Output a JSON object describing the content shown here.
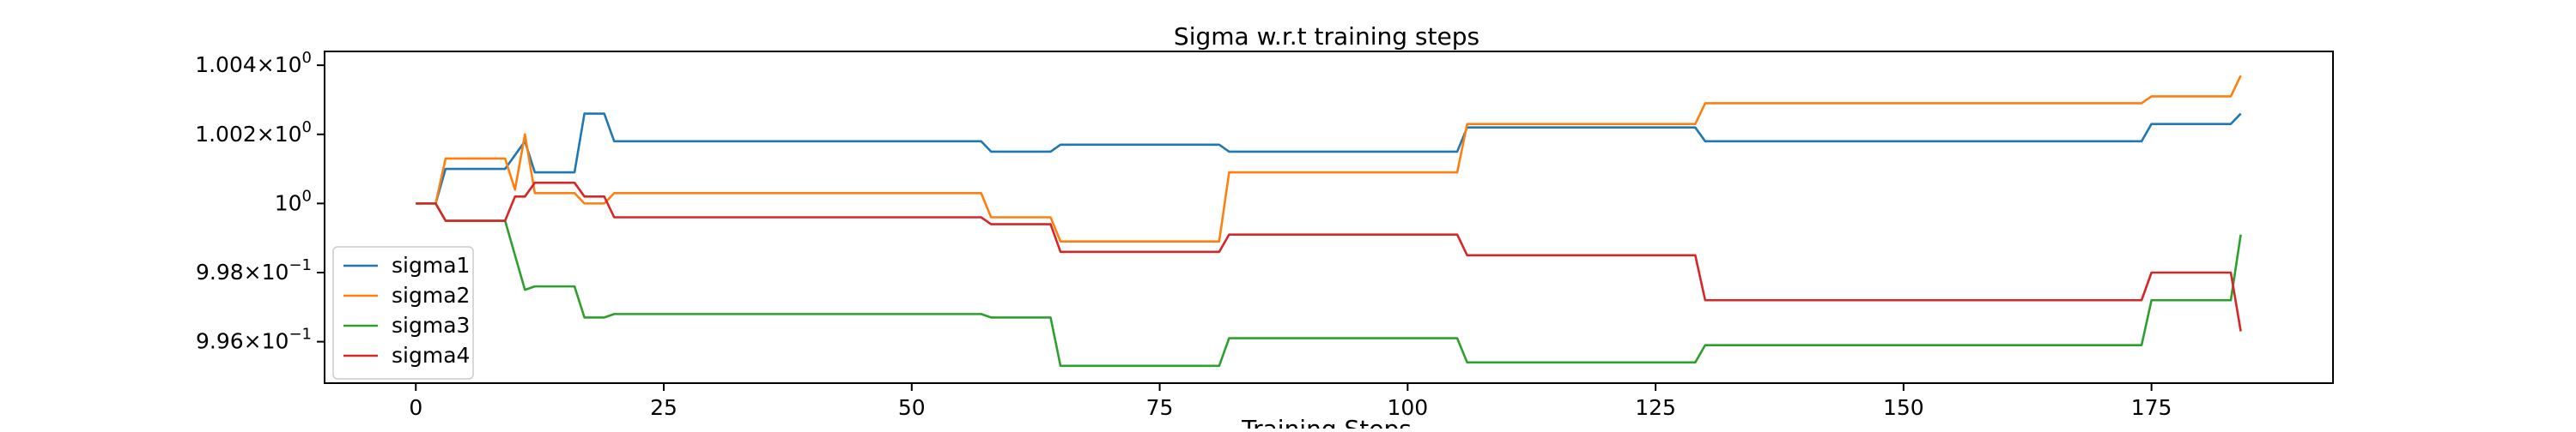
{
  "chart_data": {
    "type": "line",
    "title": "Sigma w.r.t training steps",
    "xlabel": "Training Steps",
    "ylabel": "",
    "xlim": [
      -9.2,
      193.3
    ],
    "ylim": [
      0.9948,
      1.0044
    ],
    "yscale": "log",
    "grid": false,
    "legend_position": "lower-left",
    "x_ticks": [
      0,
      25,
      50,
      75,
      100,
      125,
      150,
      175
    ],
    "x_tick_labels": [
      "0",
      "25",
      "50",
      "75",
      "100",
      "125",
      "150",
      "175"
    ],
    "y_ticks": [
      {
        "value": 1.004,
        "mantissa": "1.004",
        "base": "10",
        "exp": "0"
      },
      {
        "value": 1.002,
        "mantissa": "1.002",
        "base": "10",
        "exp": "0"
      },
      {
        "value": 1.0,
        "mantissa": "",
        "base": "10",
        "exp": "0"
      },
      {
        "value": 0.998,
        "mantissa": "9.98",
        "base": "10",
        "exp": "−1"
      },
      {
        "value": 0.996,
        "mantissa": "9.96",
        "base": "10",
        "exp": "−1"
      }
    ],
    "series": [
      {
        "name": "sigma1",
        "color": "#1f77b4",
        "points": [
          [
            0,
            1.0
          ],
          [
            2,
            1.0
          ],
          [
            3,
            1.001
          ],
          [
            9,
            1.001
          ],
          [
            11,
            1.0018
          ],
          [
            12,
            1.0009
          ],
          [
            16,
            1.0009
          ],
          [
            17,
            1.0026
          ],
          [
            19,
            1.0026
          ],
          [
            20,
            1.0018
          ],
          [
            57,
            1.0018
          ],
          [
            58,
            1.0015
          ],
          [
            64,
            1.0015
          ],
          [
            65,
            1.0017
          ],
          [
            81,
            1.0017
          ],
          [
            82,
            1.0015
          ],
          [
            105,
            1.0015
          ],
          [
            106,
            1.0022
          ],
          [
            129,
            1.0022
          ],
          [
            130,
            1.0018
          ],
          [
            174,
            1.0018
          ],
          [
            175,
            1.0023
          ],
          [
            183,
            1.0023
          ],
          [
            184,
            1.0026
          ]
        ]
      },
      {
        "name": "sigma2",
        "color": "#ff7f0e",
        "points": [
          [
            0,
            1.0
          ],
          [
            2,
            1.0
          ],
          [
            3,
            1.0013
          ],
          [
            9,
            1.0013
          ],
          [
            10,
            1.0004
          ],
          [
            11,
            1.002
          ],
          [
            12,
            1.0003
          ],
          [
            16,
            1.0003
          ],
          [
            17,
            1.0
          ],
          [
            19,
            1.0
          ],
          [
            20,
            1.0003
          ],
          [
            57,
            1.0003
          ],
          [
            58,
            0.9996
          ],
          [
            64,
            0.9996
          ],
          [
            65,
            0.9989
          ],
          [
            81,
            0.9989
          ],
          [
            82,
            1.0009
          ],
          [
            105,
            1.0009
          ],
          [
            106,
            1.0023
          ],
          [
            129,
            1.0023
          ],
          [
            130,
            1.0029
          ],
          [
            174,
            1.0029
          ],
          [
            175,
            1.0031
          ],
          [
            183,
            1.0031
          ],
          [
            184,
            1.0037
          ]
        ]
      },
      {
        "name": "sigma3",
        "color": "#2ca02c",
        "points": [
          [
            0,
            1.0
          ],
          [
            2,
            1.0
          ],
          [
            3,
            0.9995
          ],
          [
            9,
            0.9995
          ],
          [
            11,
            0.9975
          ],
          [
            12,
            0.9976
          ],
          [
            16,
            0.9976
          ],
          [
            17,
            0.9967
          ],
          [
            19,
            0.9967
          ],
          [
            20,
            0.9968
          ],
          [
            57,
            0.9968
          ],
          [
            58,
            0.9967
          ],
          [
            64,
            0.9967
          ],
          [
            65,
            0.9953
          ],
          [
            81,
            0.9953
          ],
          [
            82,
            0.9961
          ],
          [
            105,
            0.9961
          ],
          [
            106,
            0.9954
          ],
          [
            129,
            0.9954
          ],
          [
            130,
            0.9959
          ],
          [
            174,
            0.9959
          ],
          [
            175,
            0.9972
          ],
          [
            183,
            0.9972
          ],
          [
            184,
            0.9991
          ]
        ]
      },
      {
        "name": "sigma4",
        "color": "#d62728",
        "points": [
          [
            0,
            1.0
          ],
          [
            2,
            1.0
          ],
          [
            3,
            0.9995
          ],
          [
            9,
            0.9995
          ],
          [
            10,
            1.0002
          ],
          [
            11,
            1.0002
          ],
          [
            12,
            1.0006
          ],
          [
            16,
            1.0006
          ],
          [
            17,
            1.0002
          ],
          [
            19,
            1.0002
          ],
          [
            20,
            0.9996
          ],
          [
            57,
            0.9996
          ],
          [
            58,
            0.9994
          ],
          [
            64,
            0.9994
          ],
          [
            65,
            0.9986
          ],
          [
            81,
            0.9986
          ],
          [
            82,
            0.9991
          ],
          [
            105,
            0.9991
          ],
          [
            106,
            0.9985
          ],
          [
            129,
            0.9985
          ],
          [
            130,
            0.9972
          ],
          [
            174,
            0.9972
          ],
          [
            175,
            0.998
          ],
          [
            183,
            0.998
          ],
          [
            184,
            0.9963
          ]
        ]
      }
    ]
  }
}
